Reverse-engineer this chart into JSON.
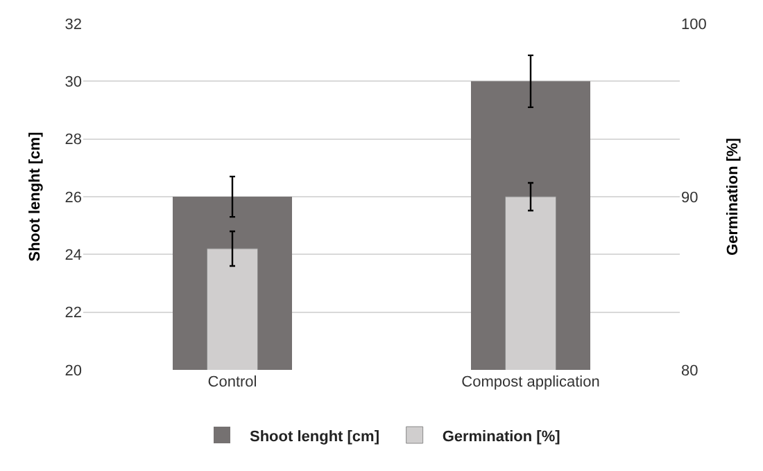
{
  "chart_data": {
    "type": "bar",
    "ylabel": "Shoot lenght [cm]",
    "y2label": "Germination [%]",
    "categories": [
      "Control",
      "Compost application"
    ],
    "series": [
      {
        "name": "Shoot lenght [cm]",
        "color": "#757171",
        "values": [
          26.0,
          30.0
        ],
        "errors": [
          0.7,
          0.9
        ]
      },
      {
        "name": "Germination [%]",
        "color": "#d0cece",
        "values": [
          87.0,
          90.0
        ],
        "errors": [
          1.0,
          0.8
        ],
        "axis": "y2"
      }
    ],
    "ylim": [
      20,
      32
    ],
    "yticks": [
      20,
      22,
      24,
      26,
      28,
      30,
      32
    ],
    "y2lim": [
      80,
      100
    ],
    "y2ticks": [
      80,
      90,
      100
    ],
    "grid": "y",
    "legend": "bottom"
  }
}
